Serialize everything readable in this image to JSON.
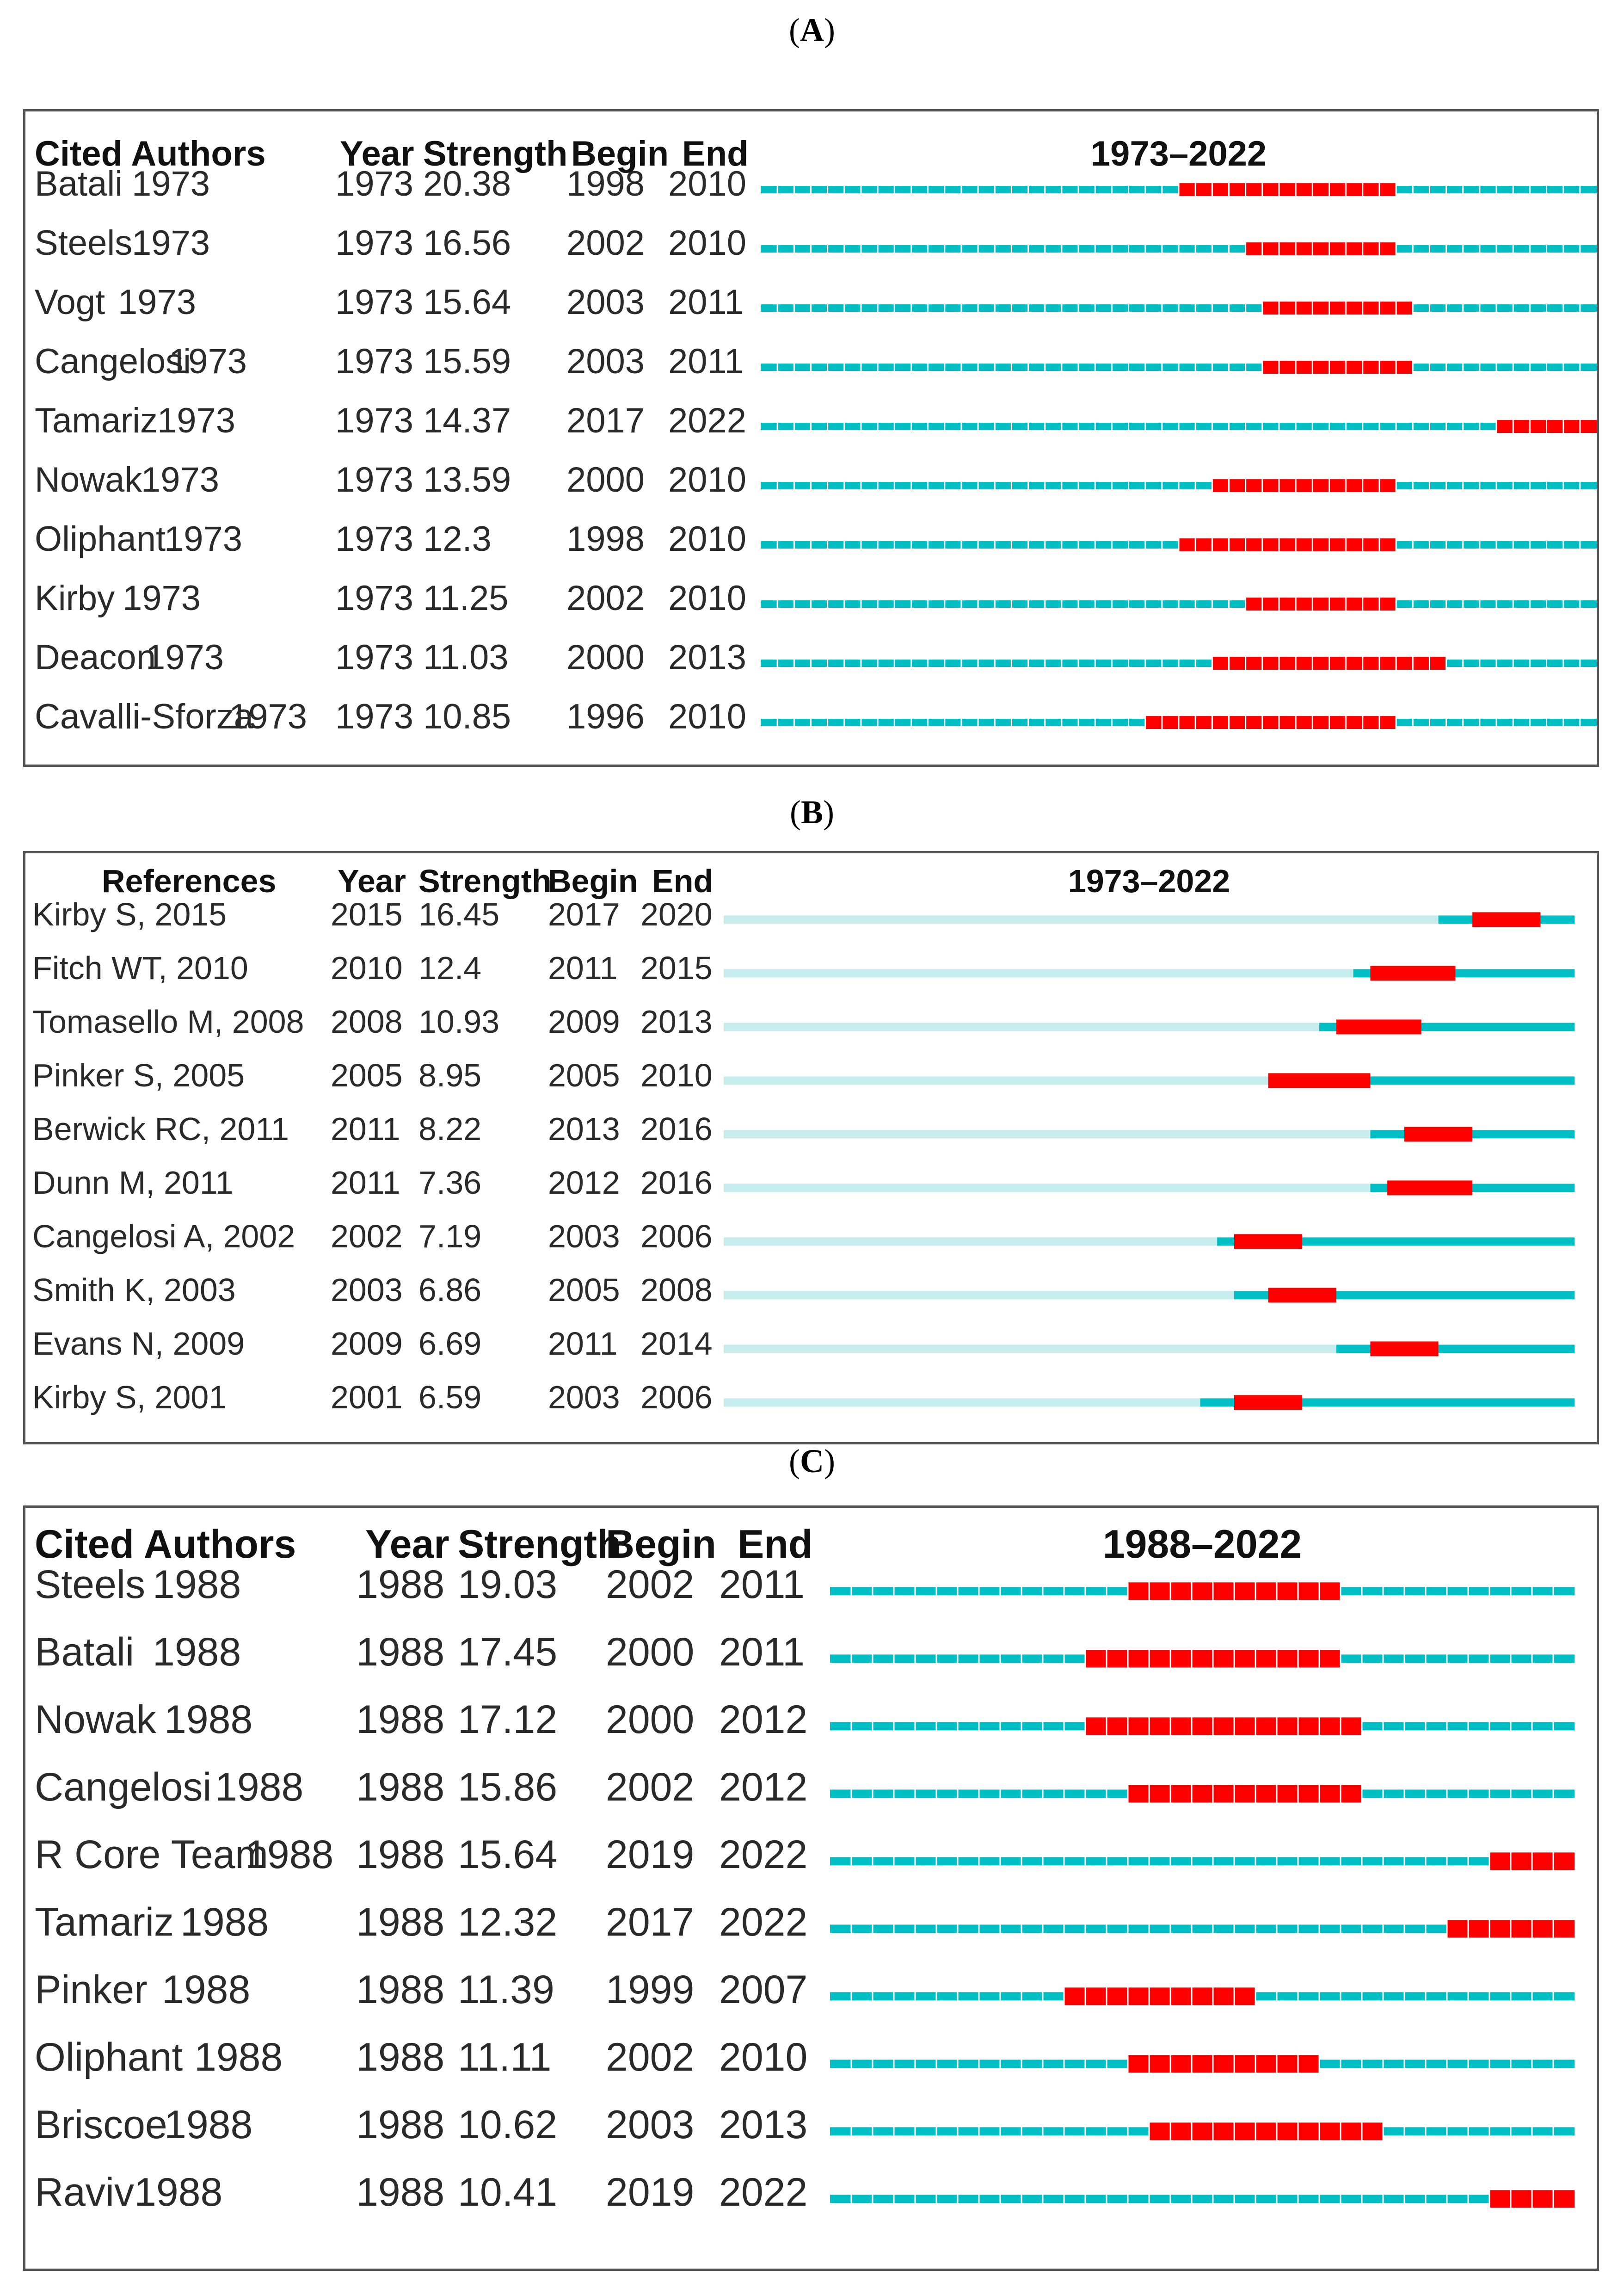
{
  "colors": {
    "normal": "#00bfc4",
    "normal_light": "#c6ecee",
    "burst": "#ff0000",
    "border": "#555555"
  },
  "chart_data": [
    {
      "panel_label": "A",
      "type": "table",
      "headers": [
        "Cited Authors",
        "Year",
        "Strength",
        "Begin",
        "End"
      ],
      "period_label": "1973–2022",
      "range": [
        1973,
        2022
      ],
      "rows": [
        {
          "name": "Batali",
          "name_year": "1973",
          "year": "1973",
          "strength": "20.38",
          "begin": "1998",
          "end": "2010"
        },
        {
          "name": "Steels",
          "name_year": "1973",
          "year": "1973",
          "strength": "16.56",
          "begin": "2002",
          "end": "2010"
        },
        {
          "name": "Vogt",
          "name_year": "1973",
          "year": "1973",
          "strength": "15.64",
          "begin": "2003",
          "end": "2011"
        },
        {
          "name": "Cangelosi",
          "name_year": "1973",
          "year": "1973",
          "strength": "15.59",
          "begin": "2003",
          "end": "2011"
        },
        {
          "name": "Tamariz",
          "name_year": "1973",
          "year": "1973",
          "strength": "14.37",
          "begin": "2017",
          "end": "2022"
        },
        {
          "name": "Nowak",
          "name_year": "1973",
          "year": "1973",
          "strength": "13.59",
          "begin": "2000",
          "end": "2010"
        },
        {
          "name": "Oliphant",
          "name_year": "1973",
          "year": "1973",
          "strength": "12.3",
          "begin": "1998",
          "end": "2010"
        },
        {
          "name": "Kirby",
          "name_year": "1973",
          "year": "1973",
          "strength": "11.25",
          "begin": "2002",
          "end": "2010"
        },
        {
          "name": "Deacon",
          "name_year": "1973",
          "year": "1973",
          "strength": "11.03",
          "begin": "2000",
          "end": "2013"
        },
        {
          "name": "Cavalli-Sforza",
          "name_year": "1973",
          "year": "1973",
          "strength": "10.85",
          "begin": "1996",
          "end": "2010"
        }
      ]
    },
    {
      "panel_label": "B",
      "type": "table",
      "headers": [
        "References",
        "Year",
        "Strength",
        "Begin",
        "End"
      ],
      "period_label": "1973–2022",
      "range": [
        1973,
        2022
      ],
      "rows": [
        {
          "name": "Kirby S, 2015",
          "name_year": "",
          "year": "2015",
          "strength": "16.45",
          "begin": "2017",
          "end": "2020"
        },
        {
          "name": "Fitch WT, 2010",
          "name_year": "",
          "year": "2010",
          "strength": "12.4",
          "begin": "2011",
          "end": "2015"
        },
        {
          "name": "Tomasello M, 2008",
          "name_year": "",
          "year": "2008",
          "strength": "10.93",
          "begin": "2009",
          "end": "2013"
        },
        {
          "name": "Pinker S, 2005",
          "name_year": "",
          "year": "2005",
          "strength": "8.95",
          "begin": "2005",
          "end": "2010"
        },
        {
          "name": "Berwick RC, 2011",
          "name_year": "",
          "year": "2011",
          "strength": "8.22",
          "begin": "2013",
          "end": "2016"
        },
        {
          "name": "Dunn M, 2011",
          "name_year": "",
          "year": "2011",
          "strength": "7.36",
          "begin": "2012",
          "end": "2016"
        },
        {
          "name": "Cangelosi A, 2002",
          "name_year": "",
          "year": "2002",
          "strength": "7.19",
          "begin": "2003",
          "end": "2006"
        },
        {
          "name": "Smith K, 2003",
          "name_year": "",
          "year": "2003",
          "strength": "6.86",
          "begin": "2005",
          "end": "2008"
        },
        {
          "name": "Evans N, 2009",
          "name_year": "",
          "year": "2009",
          "strength": "6.69",
          "begin": "2011",
          "end": "2014"
        },
        {
          "name": "Kirby S, 2001",
          "name_year": "",
          "year": "2001",
          "strength": "6.59",
          "begin": "2003",
          "end": "2006"
        }
      ]
    },
    {
      "panel_label": "C",
      "type": "table",
      "headers": [
        "Cited Authors",
        "Year",
        "Strength",
        "Begin",
        "End"
      ],
      "period_label": "1988–2022",
      "range": [
        1988,
        2022
      ],
      "rows": [
        {
          "name": "Steels",
          "name_year": "1988",
          "year": "1988",
          "strength": "19.03",
          "begin": "2002",
          "end": "2011"
        },
        {
          "name": "Batali",
          "name_year": "1988",
          "year": "1988",
          "strength": "17.45",
          "begin": "2000",
          "end": "2011"
        },
        {
          "name": "Nowak",
          "name_year": "1988",
          "year": "1988",
          "strength": "17.12",
          "begin": "2000",
          "end": "2012"
        },
        {
          "name": "Cangelosi",
          "name_year": "1988",
          "year": "1988",
          "strength": "15.86",
          "begin": "2002",
          "end": "2012"
        },
        {
          "name": "R Core Team",
          "name_year": "1988",
          "year": "1988",
          "strength": "15.64",
          "begin": "2019",
          "end": "2022"
        },
        {
          "name": "Tamariz",
          "name_year": "1988",
          "year": "1988",
          "strength": "12.32",
          "begin": "2017",
          "end": "2022"
        },
        {
          "name": "Pinker",
          "name_year": "1988",
          "year": "1988",
          "strength": "11.39",
          "begin": "1999",
          "end": "2007"
        },
        {
          "name": "Oliphant",
          "name_year": "1988",
          "year": "1988",
          "strength": "11.11",
          "begin": "2002",
          "end": "2010"
        },
        {
          "name": "Briscoe",
          "name_year": "1988",
          "year": "1988",
          "strength": "10.62",
          "begin": "2003",
          "end": "2013"
        },
        {
          "name": "Raviv",
          "name_year": "1988",
          "year": "1988",
          "strength": "10.41",
          "begin": "2019",
          "end": "2022"
        }
      ]
    }
  ]
}
